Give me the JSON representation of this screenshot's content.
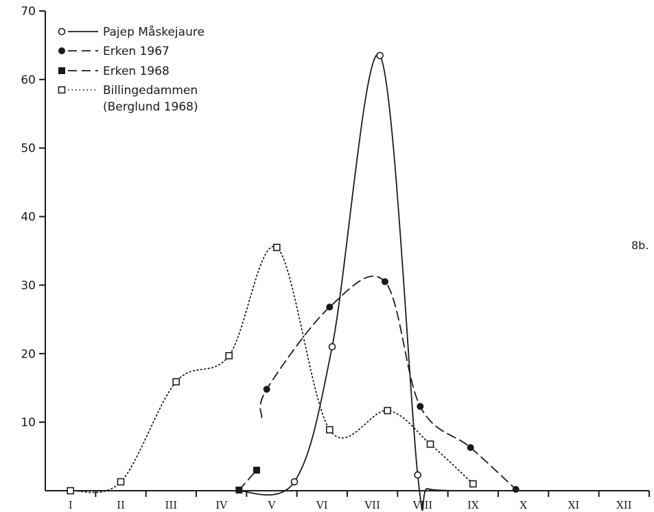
{
  "chart_data": {
    "type": "line",
    "title": "",
    "xlabel": "",
    "ylabel": "",
    "categories": [
      "I",
      "II",
      "III",
      "IV",
      "V",
      "VI",
      "VII",
      "VIII",
      "IX",
      "X",
      "XI",
      "XII"
    ],
    "ylim": [
      0,
      70
    ],
    "y_ticks": [
      10,
      20,
      30,
      40,
      50,
      60,
      70
    ],
    "grid": false,
    "legend_position": "top-left",
    "figure_label": "8b.",
    "series": [
      {
        "name": "Pajep Måskejaure",
        "line_style": "solid",
        "marker": "open-circle",
        "points": [
          [
            4.95,
            1.3
          ],
          [
            5.7,
            21
          ],
          [
            6.65,
            63.5
          ],
          [
            7.4,
            2.3
          ]
        ]
      },
      {
        "name": "Erken 1967",
        "line_style": "dashed",
        "marker": "filled-circle",
        "points": [
          [
            4.4,
            14.8
          ],
          [
            5.65,
            26.8
          ],
          [
            6.75,
            30.5
          ],
          [
            7.45,
            12.3
          ],
          [
            8.45,
            6.3
          ],
          [
            9.35,
            0.2
          ]
        ]
      },
      {
        "name": "Erken 1968",
        "line_style": "dashed",
        "marker": "filled-square",
        "points": [
          [
            3.85,
            0.1
          ],
          [
            4.2,
            3.0
          ]
        ]
      },
      {
        "name": "Billingedammen",
        "name_line2": "(Berglund 1968)",
        "line_style": "dotted",
        "marker": "open-square",
        "points": [
          [
            0.5,
            0
          ],
          [
            1.5,
            1.3
          ],
          [
            2.6,
            15.9
          ],
          [
            3.65,
            19.7
          ],
          [
            4.6,
            35.5
          ],
          [
            5.65,
            8.9
          ],
          [
            6.8,
            11.7
          ],
          [
            7.65,
            6.8
          ],
          [
            8.5,
            1.0
          ]
        ]
      }
    ]
  }
}
